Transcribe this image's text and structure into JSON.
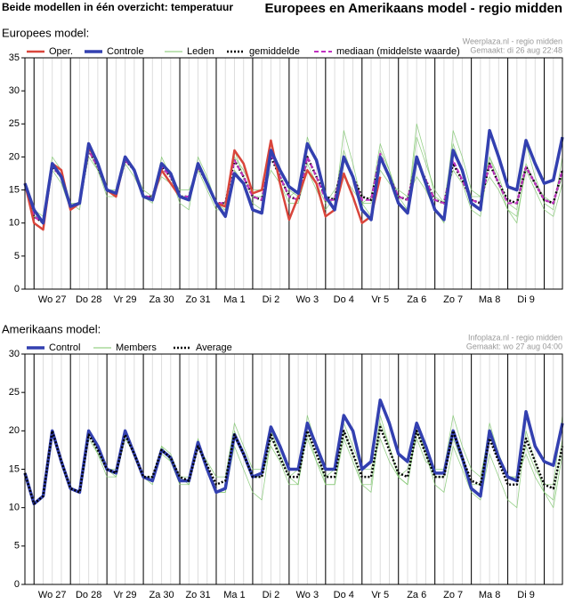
{
  "header": {
    "left": "Beide modellen in één overzicht: temperatuur",
    "title": "Europees en Amerikaans model - regio midden"
  },
  "chart_data": [
    {
      "type": "line",
      "title": "Europees model:",
      "source": [
        "Weerplaza.nl - regio midden",
        "Gemaakt: di 26 aug 22:48"
      ],
      "x": [
        0,
        1,
        2,
        3,
        4,
        5,
        6,
        7,
        8,
        9,
        10,
        11,
        12,
        13,
        14,
        15,
        16,
        17,
        18,
        19,
        20,
        21,
        22,
        23,
        24,
        25,
        26,
        27,
        28,
        29,
        30,
        31,
        32,
        33,
        34,
        35,
        36,
        37,
        38,
        39,
        40,
        41,
        42,
        43,
        44,
        45,
        46,
        47,
        48,
        49,
        50,
        51,
        52,
        53,
        54,
        55,
        56,
        57,
        58,
        59
      ],
      "xlim": [
        0,
        59
      ],
      "xticks": [
        {
          "value": 3,
          "label": "Wo 27"
        },
        {
          "value": 7,
          "label": "Do 28"
        },
        {
          "value": 11,
          "label": "Vr 29"
        },
        {
          "value": 15,
          "label": "Za 30"
        },
        {
          "value": 19,
          "label": "Zo 31"
        },
        {
          "value": 23,
          "label": "Ma 1"
        },
        {
          "value": 27,
          "label": "Di 2"
        },
        {
          "value": 31,
          "label": "Wo 3"
        },
        {
          "value": 35,
          "label": "Do 4"
        },
        {
          "value": 39,
          "label": "Vr 5"
        },
        {
          "value": 43,
          "label": "Za 6"
        },
        {
          "value": 47,
          "label": "Zo 7"
        },
        {
          "value": 51,
          "label": "Ma 8"
        },
        {
          "value": 55,
          "label": "Di 9"
        }
      ],
      "ylim": [
        0,
        35
      ],
      "yticks": [
        0,
        5,
        10,
        15,
        20,
        25,
        30,
        35
      ],
      "members": {
        "name": "Leden",
        "color": "#7cc46a",
        "series": [
          [
            16,
            12,
            11,
            20,
            18,
            13,
            12,
            21,
            18,
            14,
            14,
            20,
            18,
            14,
            13,
            20,
            17,
            13,
            12,
            20,
            17,
            13,
            12,
            18,
            16,
            13,
            12,
            21,
            18,
            15,
            14,
            23,
            19,
            14,
            12,
            24,
            19,
            13,
            11,
            21,
            18,
            14,
            12,
            23,
            19,
            15,
            13,
            18,
            16,
            12,
            11,
            20,
            17,
            13,
            12,
            22,
            17,
            13,
            12,
            20
          ],
          [
            16,
            11,
            10,
            18,
            16,
            12,
            13,
            20,
            18,
            15,
            14,
            19,
            17,
            14,
            14,
            17,
            16,
            14,
            14,
            19,
            16,
            13,
            13,
            21,
            17,
            14,
            14,
            18,
            16,
            13,
            13,
            18,
            15,
            12,
            14,
            21,
            17,
            13,
            14,
            22,
            18,
            13,
            12,
            25,
            20,
            14,
            13,
            22,
            18,
            14,
            14,
            17,
            15,
            12,
            11,
            18,
            15,
            12,
            11,
            16
          ],
          [
            16,
            11,
            10,
            19,
            17,
            13,
            13,
            22,
            19,
            15,
            15,
            20,
            18,
            15,
            14,
            19,
            17,
            15,
            15,
            18,
            15,
            12,
            12,
            20,
            18,
            15,
            15,
            21,
            17,
            14,
            15,
            19,
            16,
            13,
            15,
            17,
            15,
            13,
            13,
            18,
            16,
            15,
            14,
            17,
            15,
            12,
            10,
            24,
            20,
            15,
            14,
            20,
            16,
            12,
            10,
            19,
            16,
            14,
            13,
            17
          ]
        ]
      },
      "series": [
        {
          "name": "gemiddelde",
          "color": "#000000",
          "style": "dotted",
          "values": [
            16,
            11,
            10,
            18.5,
            17,
            12.5,
            13,
            21,
            18.5,
            15,
            14.5,
            19.5,
            18,
            14,
            14,
            18.5,
            17,
            14,
            14,
            18.5,
            16,
            13,
            13,
            19.5,
            17,
            14,
            13.5,
            20,
            17,
            14,
            13.5,
            20,
            17,
            14,
            13.5,
            20,
            17,
            14,
            13.5,
            20,
            17,
            14,
            13.5,
            19.5,
            16.5,
            13.5,
            13,
            19,
            16.5,
            13.5,
            13,
            19,
            16,
            13.5,
            13,
            18.5,
            16,
            13.5,
            13,
            18
          ]
        },
        {
          "name": "mediaan (middelste waarde)",
          "color": "#c030c0",
          "style": "dashed",
          "values": [
            16,
            11,
            10,
            18.5,
            17,
            12.5,
            13,
            21,
            18.5,
            15,
            14.5,
            19.5,
            18,
            14,
            14,
            18.5,
            17,
            14,
            14,
            18.5,
            16,
            13,
            13,
            19.5,
            17,
            14,
            13.5,
            20.5,
            17,
            14,
            13.5,
            20,
            17,
            13.5,
            13.5,
            20,
            17,
            13.5,
            13.5,
            20.5,
            17,
            14,
            13.5,
            19.5,
            16.5,
            13.5,
            13,
            19.5,
            16.5,
            13.5,
            13,
            19,
            16,
            13,
            13,
            18.5,
            16,
            13.5,
            13,
            18
          ]
        },
        {
          "name": "Oper.",
          "color": "#d9453b",
          "style": "solid",
          "values": [
            16,
            10,
            9,
            19,
            18,
            12,
            13,
            21.5,
            19,
            15,
            14,
            20,
            18,
            14,
            13.5,
            18,
            16,
            14,
            13.5,
            19,
            16,
            13,
            12.5,
            21,
            19,
            14.5,
            15,
            22.5,
            16,
            10.5,
            14,
            18,
            16,
            11,
            12,
            17.5,
            14,
            10,
            11,
            17,
            null,
            null,
            null,
            null,
            null,
            null,
            null,
            null,
            null,
            null,
            null,
            null,
            null,
            null,
            null,
            null,
            null,
            null,
            null,
            null
          ]
        },
        {
          "name": "Controle",
          "color": "#3340b0",
          "style": "bold",
          "values": [
            16,
            12,
            10,
            19,
            17,
            12.5,
            13,
            22,
            19,
            15,
            14.5,
            20,
            18,
            14,
            13.5,
            19,
            17.5,
            14,
            13.5,
            19,
            16,
            13,
            11,
            17.5,
            16,
            12,
            11.5,
            21,
            18,
            15.5,
            14.5,
            22,
            19.5,
            14,
            12,
            20,
            17,
            12,
            10.5,
            20,
            17,
            13,
            11.5,
            20,
            16,
            12,
            10.5,
            21,
            18,
            13,
            12,
            24,
            20,
            15.5,
            15,
            22.5,
            19,
            16,
            16.5,
            23
          ]
        }
      ]
    },
    {
      "type": "line",
      "title": "Amerikaans model:",
      "source": [
        "Infoplaza.nl - regio midden",
        "Gemaakt: wo 27 aug 04:00"
      ],
      "x": [
        0,
        1,
        2,
        3,
        4,
        5,
        6,
        7,
        8,
        9,
        10,
        11,
        12,
        13,
        14,
        15,
        16,
        17,
        18,
        19,
        20,
        21,
        22,
        23,
        24,
        25,
        26,
        27,
        28,
        29,
        30,
        31,
        32,
        33,
        34,
        35,
        36,
        37,
        38,
        39,
        40,
        41,
        42,
        43,
        44,
        45,
        46,
        47,
        48,
        49,
        50,
        51,
        52,
        53,
        54,
        55,
        56,
        57,
        58,
        59
      ],
      "xlim": [
        0,
        59
      ],
      "xticks": [
        {
          "value": 3,
          "label": "Wo 27"
        },
        {
          "value": 7,
          "label": "Do 28"
        },
        {
          "value": 11,
          "label": "Vr 29"
        },
        {
          "value": 15,
          "label": "Za 30"
        },
        {
          "value": 19,
          "label": "Zo 31"
        },
        {
          "value": 23,
          "label": "Ma 1"
        },
        {
          "value": 27,
          "label": "Di 2"
        },
        {
          "value": 31,
          "label": "Wo 3"
        },
        {
          "value": 35,
          "label": "Do 4"
        },
        {
          "value": 39,
          "label": "Vr 5"
        },
        {
          "value": 43,
          "label": "Za 6"
        },
        {
          "value": 47,
          "label": "Zo 7"
        },
        {
          "value": 51,
          "label": "Ma 8"
        },
        {
          "value": 55,
          "label": "Di 9"
        }
      ],
      "ylim": [
        0,
        30
      ],
      "yticks": [
        0,
        5,
        10,
        15,
        20,
        25,
        30
      ],
      "members": {
        "name": "Members",
        "color": "#7cc46a",
        "series": [
          [
            14.5,
            10.5,
            11.5,
            20,
            16,
            12.5,
            12,
            20,
            18,
            15,
            14,
            19,
            17,
            14,
            14,
            18,
            16,
            13,
            13,
            18,
            15,
            12,
            12,
            18,
            15,
            12,
            11,
            19,
            17,
            14,
            13,
            22,
            18,
            13,
            13,
            19,
            16,
            13,
            12,
            21,
            18,
            14,
            13,
            21,
            17,
            13,
            12,
            18,
            15,
            12,
            11,
            17,
            14,
            11,
            10,
            20,
            16,
            12,
            10,
            17
          ],
          [
            14.5,
            10.5,
            11.5,
            20,
            16,
            12.5,
            12,
            19,
            17,
            15,
            15,
            20,
            17,
            14,
            14,
            17,
            16,
            14,
            14,
            18,
            16,
            14,
            14,
            21,
            18,
            15,
            15,
            20,
            17,
            14,
            15,
            19,
            16,
            14,
            15,
            21,
            18,
            15,
            15,
            19,
            16,
            14,
            15,
            19,
            16,
            15,
            15,
            22,
            18,
            15,
            14,
            20,
            17,
            14,
            14,
            18,
            15,
            13,
            13,
            22
          ],
          [
            14.5,
            10.5,
            11.5,
            20,
            16,
            12.5,
            12,
            20,
            17,
            14,
            14,
            20,
            17,
            14,
            13,
            18,
            17,
            14,
            13,
            19,
            15,
            12,
            12,
            20,
            17,
            14,
            14,
            18,
            16,
            13,
            13,
            20,
            16,
            13,
            13,
            20,
            17,
            13,
            13,
            22,
            18,
            14,
            13,
            20,
            17,
            14,
            14,
            19,
            16,
            13,
            13,
            21,
            17,
            14,
            14,
            17,
            14,
            12,
            11,
            19
          ]
        ]
      },
      "series": [
        {
          "name": "Control",
          "color": "#3340b0",
          "style": "bold",
          "values": [
            14.5,
            10.5,
            11.5,
            20,
            16,
            12.5,
            12,
            20,
            18,
            15,
            14.5,
            20,
            17,
            14,
            13.5,
            17.5,
            16.5,
            13.5,
            13.5,
            18.5,
            15,
            12,
            12.5,
            19.5,
            17,
            14,
            14.5,
            20.5,
            18,
            15,
            15,
            21,
            18,
            15,
            15,
            22,
            20,
            15,
            16,
            24,
            21,
            17,
            16,
            21,
            18,
            14.5,
            14.5,
            20,
            16.5,
            12.5,
            11.5,
            20,
            16.5,
            14,
            13.5,
            22.5,
            18,
            16,
            15.5,
            21
          ]
        },
        {
          "name": "Average",
          "color": "#000000",
          "style": "dotted",
          "values": [
            14.5,
            10.5,
            11.5,
            20,
            16,
            12.5,
            12,
            19.5,
            17.5,
            15,
            14.5,
            19.5,
            17,
            14,
            14,
            17.5,
            16.5,
            14,
            13.5,
            18,
            15.5,
            13,
            13.5,
            19.5,
            17,
            14,
            14,
            19.5,
            16.5,
            14,
            14,
            20,
            17,
            14,
            14,
            20,
            17,
            14,
            14,
            20.5,
            17.5,
            14.5,
            14,
            20,
            17,
            14,
            14,
            20,
            16.5,
            13.5,
            13,
            19,
            16,
            13,
            13,
            19,
            16,
            13,
            12.5,
            18
          ]
        }
      ]
    }
  ]
}
